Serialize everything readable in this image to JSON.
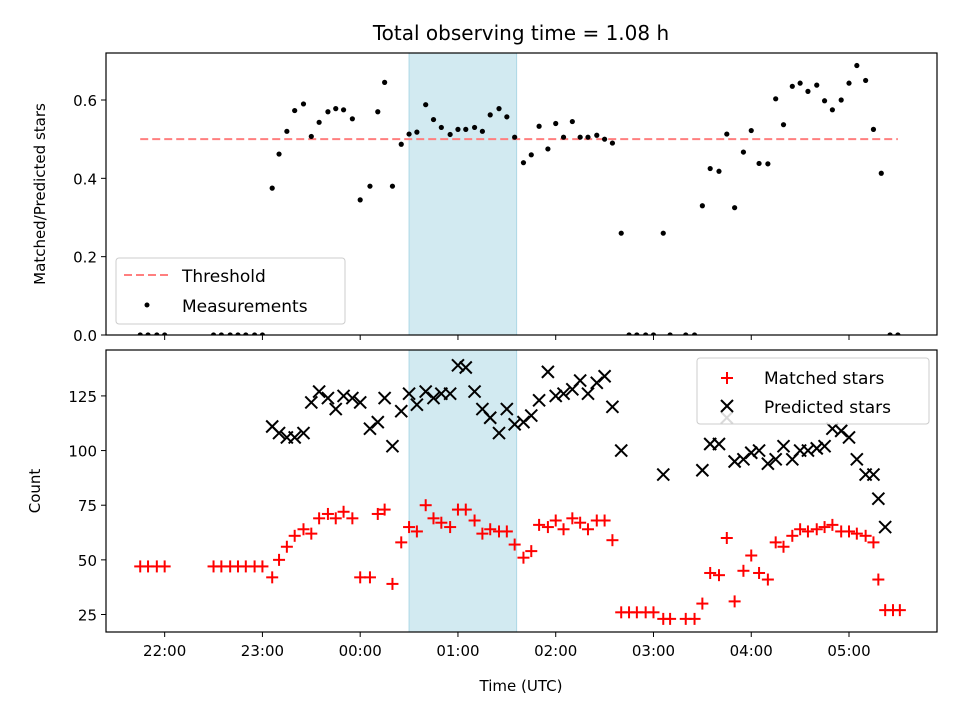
{
  "chart_data": [
    {
      "type": "scatter",
      "title": "Total observing time = 1.08 h",
      "ylabel": "Matched/Predicted stars",
      "xlim": [
        -2.6,
        5.9
      ],
      "ylim": [
        0,
        0.72
      ],
      "yticks": [
        0.0,
        0.2,
        0.4,
        0.6
      ],
      "ytick_labels": [
        "0.0",
        "0.2",
        "0.4",
        "0.6"
      ],
      "shaded_interval": [
        0.5,
        1.6
      ],
      "threshold": {
        "name": "Threshold",
        "y": 0.5,
        "x": [
          -2.25,
          5.5
        ],
        "color": "#ff7f7f"
      },
      "series": [
        {
          "name": "Measurements",
          "color": "#000000",
          "points": [
            [
              -2.25,
              0.0
            ],
            [
              -2.17,
              0.0
            ],
            [
              -2.08,
              0.0
            ],
            [
              -2.0,
              0.0
            ],
            [
              -1.5,
              0.0
            ],
            [
              -1.42,
              0.0
            ],
            [
              -1.33,
              0.0
            ],
            [
              -1.25,
              0.0
            ],
            [
              -1.17,
              0.0
            ],
            [
              -1.08,
              0.0
            ],
            [
              -1.0,
              0.0
            ],
            [
              -0.9,
              0.375
            ],
            [
              -0.83,
              0.462
            ],
            [
              -0.75,
              0.52
            ],
            [
              -0.67,
              0.573
            ],
            [
              -0.58,
              0.59
            ],
            [
              -0.5,
              0.507
            ],
            [
              -0.42,
              0.543
            ],
            [
              -0.33,
              0.57
            ],
            [
              -0.25,
              0.578
            ],
            [
              -0.17,
              0.575
            ],
            [
              -0.08,
              0.552
            ],
            [
              0.0,
              0.345
            ],
            [
              0.1,
              0.38
            ],
            [
              0.18,
              0.57
            ],
            [
              0.25,
              0.645
            ],
            [
              0.33,
              0.38
            ],
            [
              0.42,
              0.487
            ],
            [
              0.5,
              0.513
            ],
            [
              0.58,
              0.518
            ],
            [
              0.67,
              0.588
            ],
            [
              0.75,
              0.55
            ],
            [
              0.83,
              0.53
            ],
            [
              0.92,
              0.512
            ],
            [
              1.0,
              0.525
            ],
            [
              1.08,
              0.525
            ],
            [
              1.17,
              0.53
            ],
            [
              1.25,
              0.52
            ],
            [
              1.33,
              0.562
            ],
            [
              1.42,
              0.578
            ],
            [
              1.5,
              0.557
            ],
            [
              1.58,
              0.505
            ],
            [
              1.67,
              0.44
            ],
            [
              1.75,
              0.46
            ],
            [
              1.83,
              0.533
            ],
            [
              1.92,
              0.475
            ],
            [
              2.0,
              0.54
            ],
            [
              2.08,
              0.505
            ],
            [
              2.17,
              0.545
            ],
            [
              2.25,
              0.505
            ],
            [
              2.33,
              0.505
            ],
            [
              2.42,
              0.51
            ],
            [
              2.5,
              0.5
            ],
            [
              2.58,
              0.49
            ],
            [
              2.67,
              0.26
            ],
            [
              2.75,
              0.0
            ],
            [
              2.83,
              0.0
            ],
            [
              2.92,
              0.0
            ],
            [
              3.0,
              0.0
            ],
            [
              3.1,
              0.26
            ],
            [
              3.17,
              0.0
            ],
            [
              3.33,
              0.0
            ],
            [
              3.42,
              0.0
            ],
            [
              3.5,
              0.33
            ],
            [
              3.58,
              0.425
            ],
            [
              3.67,
              0.418
            ],
            [
              3.75,
              0.513
            ],
            [
              3.83,
              0.325
            ],
            [
              3.92,
              0.467
            ],
            [
              4.0,
              0.522
            ],
            [
              4.08,
              0.438
            ],
            [
              4.17,
              0.437
            ],
            [
              4.25,
              0.603
            ],
            [
              4.33,
              0.537
            ],
            [
              4.42,
              0.635
            ],
            [
              4.5,
              0.643
            ],
            [
              4.58,
              0.622
            ],
            [
              4.67,
              0.638
            ],
            [
              4.75,
              0.598
            ],
            [
              4.83,
              0.575
            ],
            [
              4.92,
              0.6
            ],
            [
              5.0,
              0.643
            ],
            [
              5.08,
              0.688
            ],
            [
              5.17,
              0.65
            ],
            [
              5.25,
              0.525
            ],
            [
              5.33,
              0.413
            ],
            [
              5.42,
              0.0
            ],
            [
              5.5,
              0.0
            ]
          ]
        }
      ],
      "legend": {
        "placement": "lower-left"
      }
    },
    {
      "type": "scatter",
      "xlabel": "Time (UTC)",
      "ylabel": "Count",
      "xlim": [
        -2.6,
        5.9
      ],
      "ylim": [
        17,
        146
      ],
      "xticks": [
        -2,
        -1,
        0,
        1,
        2,
        3,
        4,
        5
      ],
      "xtick_labels": [
        "22:00",
        "23:00",
        "00:00",
        "01:00",
        "02:00",
        "03:00",
        "04:00",
        "05:00"
      ],
      "yticks": [
        25,
        50,
        75,
        100,
        125
      ],
      "ytick_labels": [
        "25",
        "50",
        "75",
        "100",
        "125"
      ],
      "shaded_interval": [
        0.5,
        1.6
      ],
      "series": [
        {
          "name": "Matched stars",
          "marker": "plus",
          "color": "#ff0000",
          "points": [
            [
              -2.25,
              47
            ],
            [
              -2.17,
              47
            ],
            [
              -2.08,
              47
            ],
            [
              -2.0,
              47
            ],
            [
              -1.5,
              47
            ],
            [
              -1.42,
              47
            ],
            [
              -1.33,
              47
            ],
            [
              -1.25,
              47
            ],
            [
              -1.17,
              47
            ],
            [
              -1.08,
              47
            ],
            [
              -1.0,
              47
            ],
            [
              -0.9,
              42
            ],
            [
              -0.83,
              50
            ],
            [
              -0.75,
              56
            ],
            [
              -0.67,
              61
            ],
            [
              -0.58,
              64
            ],
            [
              -0.5,
              62
            ],
            [
              -0.42,
              69
            ],
            [
              -0.33,
              71
            ],
            [
              -0.25,
              69
            ],
            [
              -0.17,
              72
            ],
            [
              -0.08,
              69
            ],
            [
              0.0,
              42
            ],
            [
              0.1,
              42
            ],
            [
              0.18,
              71
            ],
            [
              0.25,
              73
            ],
            [
              0.33,
              39
            ],
            [
              0.42,
              58
            ],
            [
              0.5,
              65
            ],
            [
              0.58,
              63
            ],
            [
              0.67,
              75
            ],
            [
              0.75,
              69
            ],
            [
              0.83,
              67
            ],
            [
              0.92,
              65
            ],
            [
              1.0,
              73
            ],
            [
              1.08,
              73
            ],
            [
              1.17,
              68
            ],
            [
              1.25,
              62
            ],
            [
              1.33,
              64
            ],
            [
              1.42,
              63
            ],
            [
              1.5,
              63
            ],
            [
              1.58,
              57
            ],
            [
              1.67,
              51
            ],
            [
              1.75,
              54
            ],
            [
              1.83,
              66
            ],
            [
              1.92,
              65
            ],
            [
              2.0,
              68
            ],
            [
              2.08,
              64
            ],
            [
              2.17,
              69
            ],
            [
              2.25,
              67
            ],
            [
              2.33,
              64
            ],
            [
              2.42,
              68
            ],
            [
              2.5,
              68
            ],
            [
              2.58,
              59
            ],
            [
              2.67,
              26
            ],
            [
              2.75,
              26
            ],
            [
              2.83,
              26
            ],
            [
              2.92,
              26
            ],
            [
              3.0,
              26
            ],
            [
              3.1,
              23
            ],
            [
              3.17,
              23
            ],
            [
              3.33,
              23
            ],
            [
              3.42,
              23
            ],
            [
              3.5,
              30
            ],
            [
              3.58,
              44
            ],
            [
              3.67,
              43
            ],
            [
              3.75,
              60
            ],
            [
              3.83,
              31
            ],
            [
              3.92,
              45
            ],
            [
              4.0,
              52
            ],
            [
              4.08,
              44
            ],
            [
              4.17,
              41
            ],
            [
              4.25,
              58
            ],
            [
              4.33,
              56
            ],
            [
              4.42,
              61
            ],
            [
              4.5,
              64
            ],
            [
              4.58,
              63
            ],
            [
              4.67,
              64
            ],
            [
              4.75,
              65
            ],
            [
              4.83,
              66
            ],
            [
              4.92,
              63
            ],
            [
              5.0,
              63
            ],
            [
              5.08,
              62
            ],
            [
              5.17,
              61
            ],
            [
              5.25,
              58
            ],
            [
              5.3,
              41
            ],
            [
              5.37,
              27
            ],
            [
              5.45,
              27
            ],
            [
              5.52,
              27
            ]
          ]
        },
        {
          "name": "Predicted stars",
          "marker": "x",
          "color": "#000000",
          "points": [
            [
              -0.9,
              111
            ],
            [
              -0.83,
              108
            ],
            [
              -0.75,
              106
            ],
            [
              -0.67,
              106
            ],
            [
              -0.58,
              108
            ],
            [
              -0.5,
              122
            ],
            [
              -0.42,
              127
            ],
            [
              -0.33,
              124
            ],
            [
              -0.25,
              119
            ],
            [
              -0.17,
              125
            ],
            [
              -0.08,
              124
            ],
            [
              0.0,
              122
            ],
            [
              0.1,
              110
            ],
            [
              0.18,
              113
            ],
            [
              0.25,
              124
            ],
            [
              0.33,
              102
            ],
            [
              0.42,
              118
            ],
            [
              0.5,
              126
            ],
            [
              0.58,
              121
            ],
            [
              0.67,
              127
            ],
            [
              0.75,
              124
            ],
            [
              0.83,
              126
            ],
            [
              0.92,
              126
            ],
            [
              1.0,
              139
            ],
            [
              1.08,
              138
            ],
            [
              1.17,
              127
            ],
            [
              1.25,
              119
            ],
            [
              1.33,
              115
            ],
            [
              1.42,
              108
            ],
            [
              1.5,
              119
            ],
            [
              1.58,
              112
            ],
            [
              1.67,
              113
            ],
            [
              1.75,
              116
            ],
            [
              1.83,
              123
            ],
            [
              1.92,
              136
            ],
            [
              2.0,
              125
            ],
            [
              2.08,
              126
            ],
            [
              2.17,
              128
            ],
            [
              2.25,
              132
            ],
            [
              2.33,
              126
            ],
            [
              2.42,
              131
            ],
            [
              2.5,
              134
            ],
            [
              2.58,
              120
            ],
            [
              2.67,
              100
            ],
            [
              3.1,
              89
            ],
            [
              3.5,
              91
            ],
            [
              3.58,
              103
            ],
            [
              3.67,
              103
            ],
            [
              3.75,
              115
            ],
            [
              3.83,
              95
            ],
            [
              3.92,
              96
            ],
            [
              4.0,
              99
            ],
            [
              4.08,
              100
            ],
            [
              4.17,
              94
            ],
            [
              4.25,
              96
            ],
            [
              4.33,
              102
            ],
            [
              4.42,
              96
            ],
            [
              4.5,
              100
            ],
            [
              4.58,
              100
            ],
            [
              4.67,
              101
            ],
            [
              4.75,
              102
            ],
            [
              4.83,
              110
            ],
            [
              4.92,
              109
            ],
            [
              5.0,
              106
            ],
            [
              5.08,
              96
            ],
            [
              5.17,
              89
            ],
            [
              5.25,
              89
            ],
            [
              5.3,
              78
            ],
            [
              5.37,
              65
            ]
          ]
        }
      ],
      "legend": {
        "placement": "top-right"
      }
    }
  ]
}
